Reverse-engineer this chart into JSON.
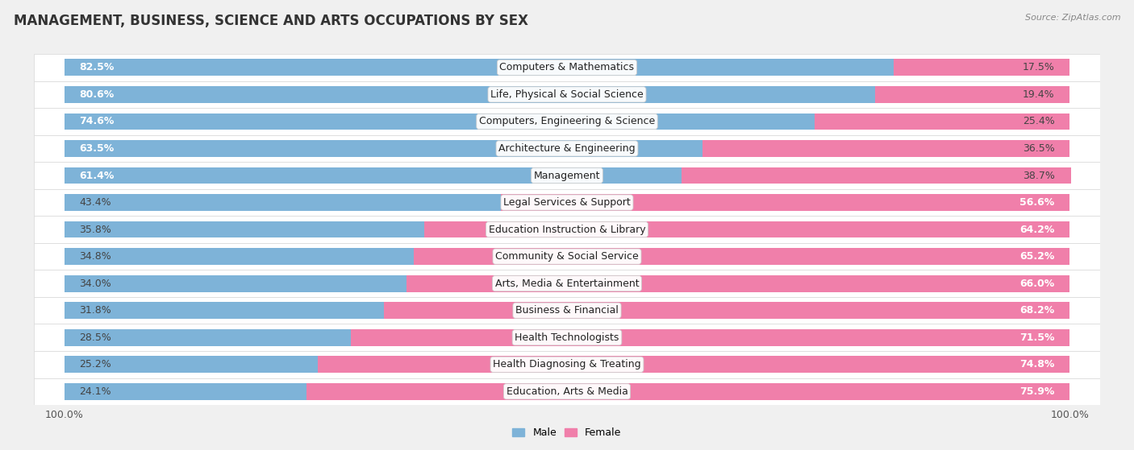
{
  "title": "MANAGEMENT, BUSINESS, SCIENCE AND ARTS OCCUPATIONS BY SEX",
  "source": "Source: ZipAtlas.com",
  "categories": [
    "Computers & Mathematics",
    "Life, Physical & Social Science",
    "Computers, Engineering & Science",
    "Architecture & Engineering",
    "Management",
    "Legal Services & Support",
    "Education Instruction & Library",
    "Community & Social Service",
    "Arts, Media & Entertainment",
    "Business & Financial",
    "Health Technologists",
    "Health Diagnosing & Treating",
    "Education, Arts & Media"
  ],
  "male_pct": [
    82.5,
    80.6,
    74.6,
    63.5,
    61.4,
    43.4,
    35.8,
    34.8,
    34.0,
    31.8,
    28.5,
    25.2,
    24.1
  ],
  "female_pct": [
    17.5,
    19.4,
    25.4,
    36.5,
    38.7,
    56.6,
    64.2,
    65.2,
    66.0,
    68.2,
    71.5,
    74.8,
    75.9
  ],
  "male_color": "#7eb3d8",
  "female_color": "#f07faa",
  "background_color": "#f0f0f0",
  "row_bg_light": "#f8f8f8",
  "row_bg_dark": "#ebebeb",
  "bar_height": 0.62,
  "title_fontsize": 12,
  "label_fontsize": 9,
  "pct_fontsize": 9,
  "tick_fontsize": 9
}
